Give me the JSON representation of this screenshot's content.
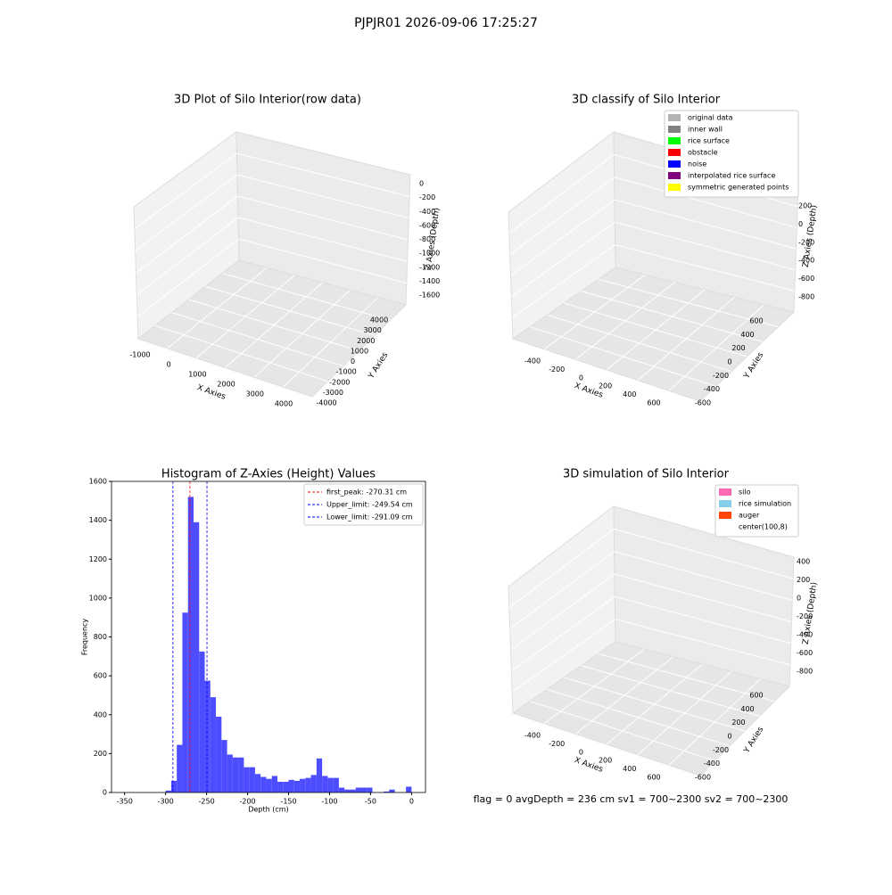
{
  "title": "PJPJR01 2026-09-06 17:25:27",
  "chart_data": [
    {
      "type": "scatter3d",
      "title": "3D Plot of Silo Interior(row data)",
      "xlabel": "X Axies",
      "ylabel": "Y Axies",
      "zlabel": "Z Axies (Depth)",
      "xticks": [
        -1000,
        0,
        1000,
        2000,
        3000,
        4000
      ],
      "yticks": [
        -4000,
        -3000,
        -2000,
        -1000,
        0,
        1000,
        2000,
        3000,
        4000
      ],
      "zticks": [
        0,
        -200,
        -400,
        -600,
        -800,
        -1000,
        -1200,
        -1400,
        -1600
      ]
    },
    {
      "type": "scatter3d",
      "title": "3D classify of Silo Interior",
      "xlabel": "X Axies",
      "ylabel": "Y Axies",
      "zlabel": "Z Axies (Depth)",
      "xticks": [
        -400,
        -200,
        0,
        200,
        400,
        600
      ],
      "yticks": [
        -600,
        -400,
        -200,
        0,
        200,
        400,
        600
      ],
      "zticks": [
        200,
        0,
        -200,
        -400,
        -600,
        -800
      ],
      "series": [
        {
          "name": "original data",
          "color": "#b3b3b3"
        },
        {
          "name": "inner wall",
          "color": "#808080"
        },
        {
          "name": "rice surface",
          "color": "#00ff00"
        },
        {
          "name": "obstacle",
          "color": "#ff0000"
        },
        {
          "name": "noise",
          "color": "#0000ff"
        },
        {
          "name": "interpolated rice surface",
          "color": "#800080"
        },
        {
          "name": "symmetric generated points",
          "color": "#ffff00"
        }
      ]
    },
    {
      "type": "histogram",
      "title": "Histogram of Z-Axies (Height) Values",
      "xlabel": "Depth (cm)",
      "ylabel": "Frequency",
      "color": "#4d4dff",
      "bins": [
        -300,
        -293.18,
        -286.36,
        -279.55,
        -272.73,
        -265.91,
        -259.09,
        -252.27,
        -245.45,
        -238.64,
        -231.82,
        -225,
        -218.18,
        -211.36,
        -204.55,
        -197.73,
        -190.91,
        -184.09,
        -177.27,
        -170.45,
        -163.64,
        -156.82,
        -150,
        -143.18,
        -136.36,
        -129.55,
        -122.73,
        -115.91,
        -109.09,
        -102.27,
        -95.45,
        -88.64,
        -81.82,
        -75,
        -68.18,
        -61.36,
        -54.55,
        -47.73,
        -40.91,
        -34.09,
        -27.27,
        -20.45,
        -13.64,
        -6.82,
        0
      ],
      "values": [
        10,
        60,
        245,
        925,
        1520,
        1390,
        725,
        575,
        490,
        390,
        270,
        195,
        180,
        180,
        130,
        130,
        95,
        80,
        70,
        85,
        55,
        55,
        65,
        60,
        70,
        75,
        90,
        175,
        85,
        75,
        75,
        25,
        15,
        15,
        25,
        25,
        25,
        0,
        0,
        5,
        15,
        0,
        0,
        30
      ],
      "xlim": [
        -366,
        17
      ],
      "xticks": [
        -350,
        -300,
        -250,
        -200,
        -150,
        -100,
        -50,
        0
      ],
      "ylim": [
        0,
        1600
      ],
      "yticks": [
        0,
        200,
        400,
        600,
        800,
        1000,
        1200,
        1400,
        1600
      ],
      "lines": [
        {
          "name": "first_peak: -270.31 cm",
          "value": -270.31,
          "color": "#ff0000"
        },
        {
          "name": "Upper_limit: -249.54 cm",
          "value": -249.54,
          "color": "#0000ff"
        },
        {
          "name": "Lower_limit: -291.09 cm",
          "value": -291.09,
          "color": "#0000ff"
        }
      ],
      "legend": "upper right"
    },
    {
      "type": "surface3d",
      "title": "3D simulation of Silo Interior",
      "xlabel": "X Axies",
      "ylabel": "Y Axies",
      "zlabel": "Z Axies (Depth)",
      "xticks": [
        -400,
        -200,
        0,
        200,
        400,
        600
      ],
      "yticks": [
        -600,
        -400,
        -200,
        0,
        200,
        400,
        600
      ],
      "zticks": [
        400,
        200,
        0,
        -200,
        -400,
        -600,
        -800
      ],
      "series": [
        {
          "name": "silo",
          "color": "#ff69b4"
        },
        {
          "name": "rice simulation",
          "color": "#87ceeb"
        },
        {
          "name": "auger",
          "color": "#ff4500"
        },
        {
          "name": "center(100,8)",
          "color": "#ffffff"
        }
      ],
      "annotation": "flag = 0     avgDepth = 236 cm  sv1 = 700~2300  sv2 = 700~2300"
    }
  ]
}
